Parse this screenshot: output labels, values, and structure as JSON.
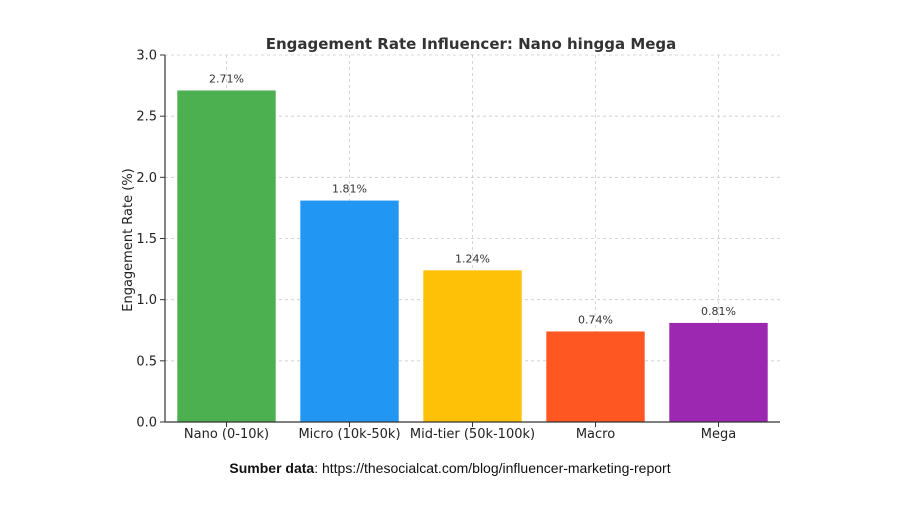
{
  "chart_data": {
    "type": "bar",
    "title": "Engagement Rate Influencer: Nano hingga Mega",
    "xlabel": "",
    "ylabel": "Engagement Rate (%)",
    "categories": [
      "Nano (0-10k)",
      "Micro (10k-50k)",
      "Mid-tier (50k-100k)",
      "Macro",
      "Mega"
    ],
    "values": [
      2.71,
      1.81,
      1.24,
      0.74,
      0.81
    ],
    "value_labels": [
      "2.71%",
      "1.81%",
      "1.24%",
      "0.74%",
      "0.81%"
    ],
    "colors": [
      "#4CAF50",
      "#2196F3",
      "#FFC107",
      "#FF5722",
      "#9C27B0"
    ],
    "ylim": [
      0,
      3.0
    ],
    "yticks": [
      0.0,
      0.5,
      1.0,
      1.5,
      2.0,
      2.5,
      3.0
    ],
    "ytick_labels": [
      "0.0",
      "0.5",
      "1.0",
      "1.5",
      "2.0",
      "2.5",
      "3.0"
    ],
    "grid": true,
    "legend": "none"
  },
  "footer": {
    "label": "Sumber data",
    "separator": ": ",
    "text": "https://thesocialcat.com/blog/influencer-marketing-report"
  }
}
